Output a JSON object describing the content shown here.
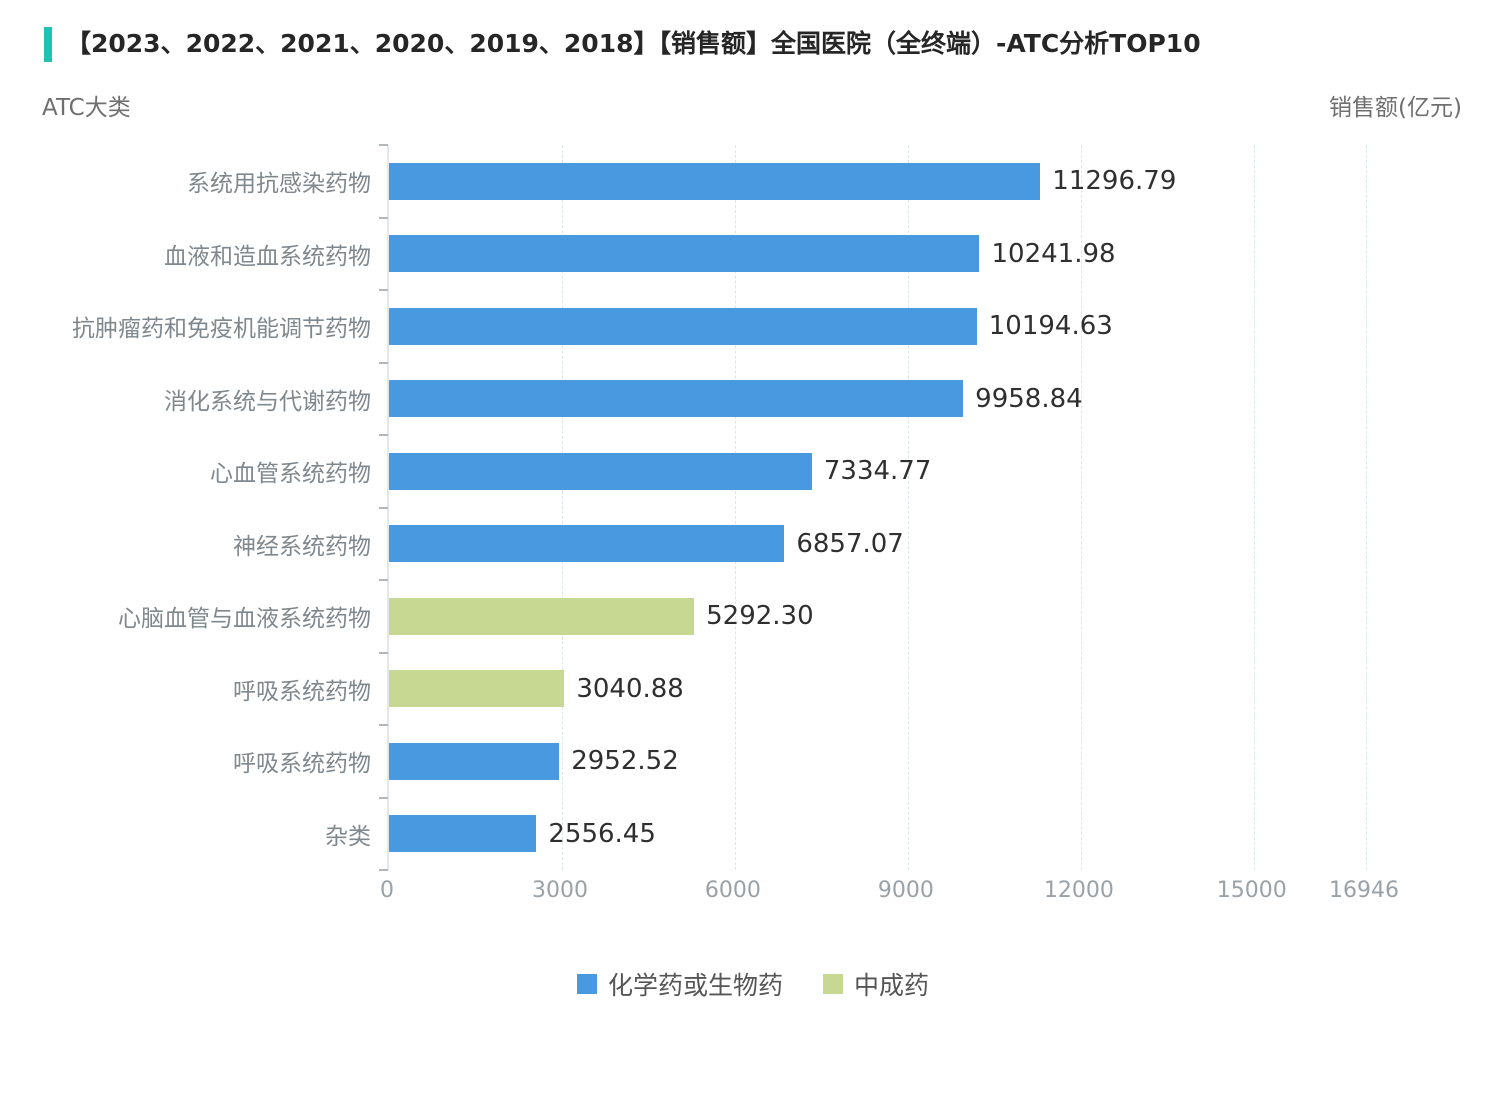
{
  "title": {
    "text": "【2023、2022、2021、2020、2019、2018】【销售额】全国医院（全终端）-ATC分析TOP10"
  },
  "axis_headers": {
    "left": "ATC大类",
    "right": "销售额(亿元)"
  },
  "colors": {
    "accent_bar": "#1ec3b3",
    "chemical_blue": "#4899df",
    "tcm_green": "#c7d892",
    "gridline": "#dbe7ea",
    "axis_line": "#e3e7e9"
  },
  "chart_data": {
    "type": "bar",
    "orientation": "horizontal",
    "xlabel": "销售额(亿元)",
    "ylabel": "ATC大类",
    "xlim": [
      0,
      16946
    ],
    "x_ticks": [
      0,
      3000,
      6000,
      9000,
      12000,
      15000,
      16946
    ],
    "grid": "dashed-vertical",
    "legend_position": "bottom-center",
    "bars": [
      {
        "category": "系统用抗感染药物",
        "value": 11296.79,
        "label": "11296.79",
        "series": "化学药或生物药"
      },
      {
        "category": "血液和造血系统药物",
        "value": 10241.98,
        "label": "10241.98",
        "series": "化学药或生物药"
      },
      {
        "category": "抗肿瘤药和免疫机能调节药物",
        "value": 10194.63,
        "label": "10194.63",
        "series": "化学药或生物药"
      },
      {
        "category": "消化系统与代谢药物",
        "value": 9958.84,
        "label": "9958.84",
        "series": "化学药或生物药"
      },
      {
        "category": "心血管系统药物",
        "value": 7334.77,
        "label": "7334.77",
        "series": "化学药或生物药"
      },
      {
        "category": "神经系统药物",
        "value": 6857.07,
        "label": "6857.07",
        "series": "化学药或生物药"
      },
      {
        "category": "心脑血管与血液系统药物",
        "value": 5292.3,
        "label": "5292.30",
        "series": "中成药"
      },
      {
        "category": "呼吸系统药物",
        "value": 3040.88,
        "label": "3040.88",
        "series": "中成药"
      },
      {
        "category": "呼吸系统药物",
        "value": 2952.52,
        "label": "2952.52",
        "series": "化学药或生物药"
      },
      {
        "category": "杂类",
        "value": 2556.45,
        "label": "2556.45",
        "series": "化学药或生物药"
      }
    ],
    "legend": [
      {
        "label": "化学药或生物药",
        "color": "#4899df"
      },
      {
        "label": "中成药",
        "color": "#c7d892"
      }
    ]
  }
}
